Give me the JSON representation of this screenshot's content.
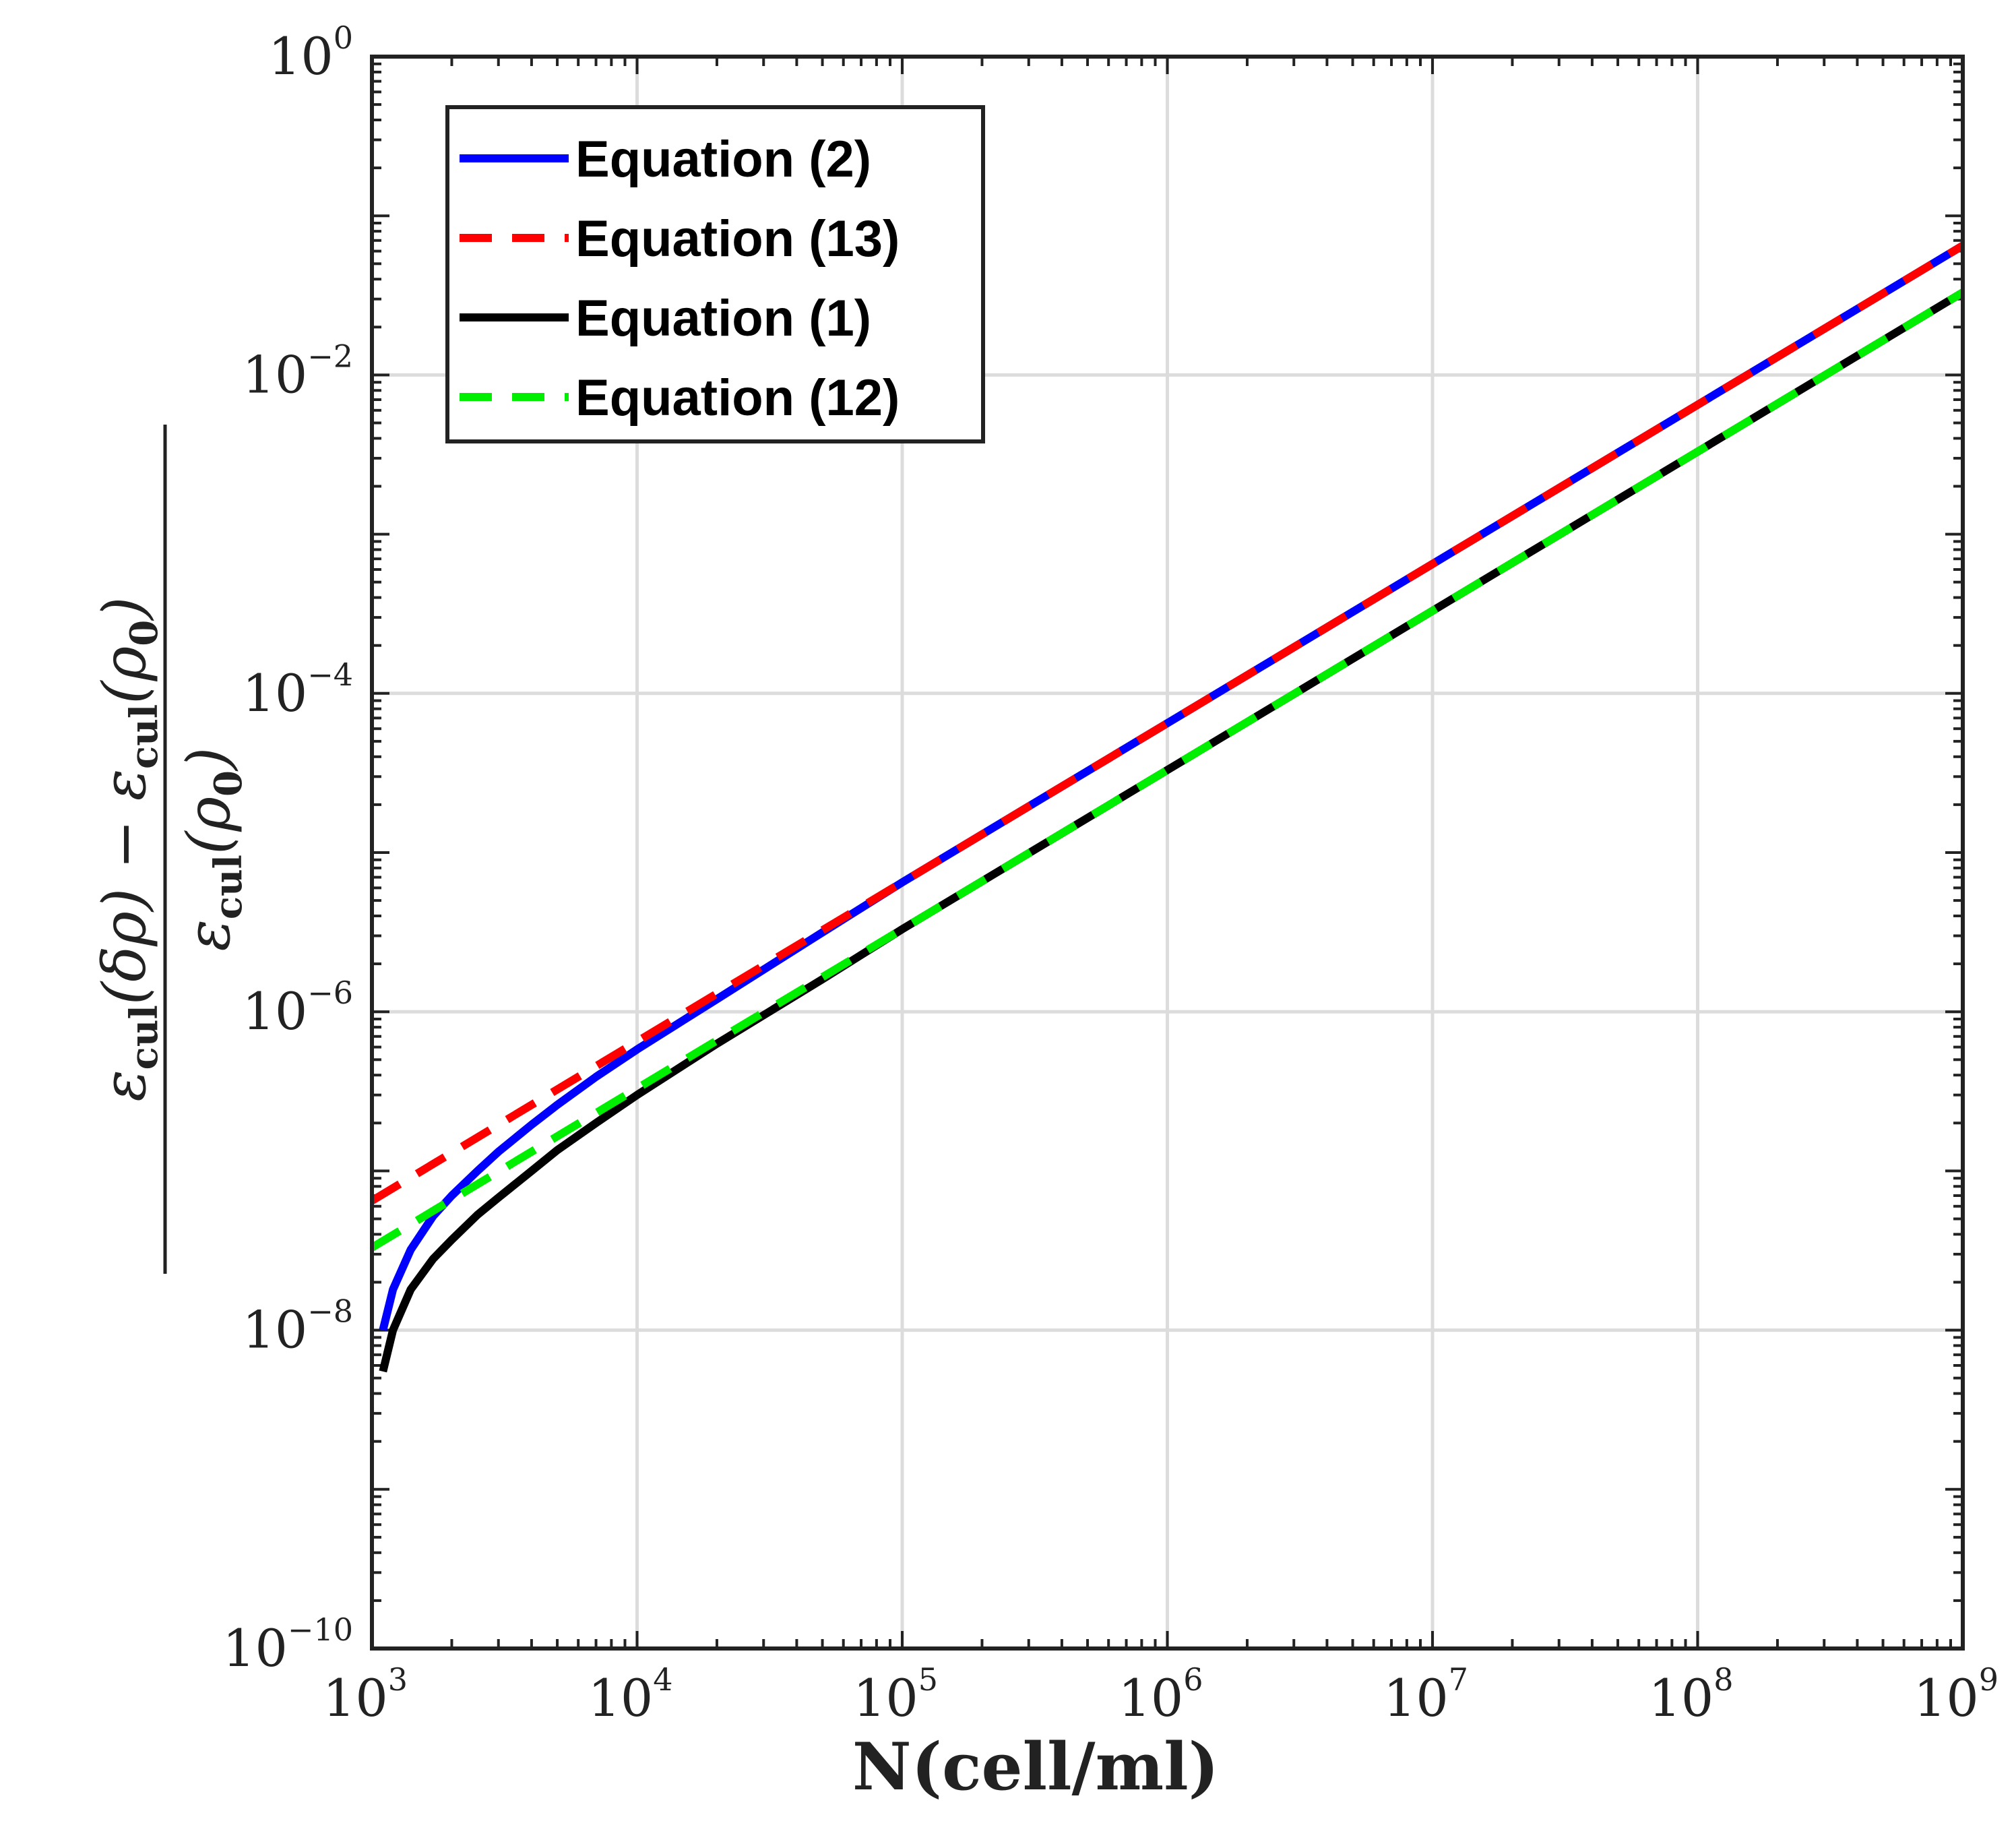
{
  "chart_data": {
    "type": "line",
    "xscale": "log",
    "yscale": "log",
    "xlim": [
      1000,
      1000000000
    ],
    "ylim": [
      1e-10,
      1
    ],
    "grid": true,
    "xlabel": "N(cell/ml)",
    "ylabel": {
      "numerator_parts": [
        "ε",
        "cul",
        "(δρ) − ε",
        "cul",
        "(ρ",
        "0",
        ")"
      ],
      "denominator_parts": [
        "ε",
        "cul",
        "(ρ",
        "0",
        ")"
      ]
    },
    "xticks": [
      {
        "value": 1000,
        "base": "10",
        "exp": "3"
      },
      {
        "value": 10000,
        "base": "10",
        "exp": "4"
      },
      {
        "value": 100000,
        "base": "10",
        "exp": "5"
      },
      {
        "value": 1000000,
        "base": "10",
        "exp": "6"
      },
      {
        "value": 10000000,
        "base": "10",
        "exp": "7"
      },
      {
        "value": 100000000,
        "base": "10",
        "exp": "8"
      },
      {
        "value": 1000000000,
        "base": "10",
        "exp": "9"
      }
    ],
    "yticks": [
      {
        "value": 1e-10,
        "base": "10",
        "exp": "−10"
      },
      {
        "value": 1e-08,
        "base": "10",
        "exp": "−8"
      },
      {
        "value": 1e-06,
        "base": "10",
        "exp": "−6"
      },
      {
        "value": 0.0001,
        "base": "10",
        "exp": "−4"
      },
      {
        "value": 0.01,
        "base": "10",
        "exp": "−2"
      },
      {
        "value": 1,
        "base": "10",
        "exp": "0"
      }
    ],
    "legend_position": "top-left",
    "series": [
      {
        "name": "Equation (2)",
        "color": "#0000ff",
        "style": "solid",
        "x": [
          1100,
          1200,
          1400,
          1700,
          2000,
          2500,
          3000,
          4000,
          5000,
          7000,
          10000,
          20000,
          50000,
          100000,
          1000000,
          10000000,
          100000000,
          1000000000
        ],
        "y": [
          1e-08,
          1.8e-08,
          3.2e-08,
          5.2e-08,
          7e-08,
          1e-07,
          1.32e-07,
          1.95e-07,
          2.6e-07,
          3.9e-07,
          5.8e-07,
          1.2e-06,
          3.15e-06,
          6.5e-06,
          6.5e-05,
          0.00065,
          0.0065,
          0.065
        ]
      },
      {
        "name": "Equation (13)",
        "color": "#ff0000",
        "style": "dashed",
        "x": [
          1000,
          2000,
          5000,
          10000,
          100000,
          1000000,
          10000000,
          100000000,
          1000000000
        ],
        "y": [
          6.5e-08,
          1.3e-07,
          3.25e-07,
          6.5e-07,
          6.5e-06,
          6.5e-05,
          0.00065,
          0.0065,
          0.065
        ]
      },
      {
        "name": "Equation (1)",
        "color": "#000000",
        "style": "solid",
        "x": [
          1100,
          1200,
          1400,
          1700,
          2000,
          2500,
          3000,
          4000,
          5000,
          7000,
          10000,
          20000,
          50000,
          100000,
          1000000,
          10000000,
          100000000,
          1000000000
        ],
        "y": [
          5.5e-09,
          1e-08,
          1.8e-08,
          2.8e-08,
          3.7e-08,
          5.3e-08,
          6.8e-08,
          1e-07,
          1.35e-07,
          2e-07,
          3e-07,
          6.3e-07,
          1.6e-06,
          3.3e-06,
          3.3e-05,
          0.00033,
          0.0033,
          0.033
        ]
      },
      {
        "name": "Equation (12)",
        "color": "#00ee00",
        "style": "dashed",
        "x": [
          1000,
          2000,
          5000,
          10000,
          100000,
          1000000,
          10000000,
          100000000,
          1000000000
        ],
        "y": [
          3.3e-08,
          6.6e-08,
          1.65e-07,
          3.3e-07,
          3.3e-06,
          3.3e-05,
          0.00033,
          0.0033,
          0.033
        ]
      }
    ]
  }
}
